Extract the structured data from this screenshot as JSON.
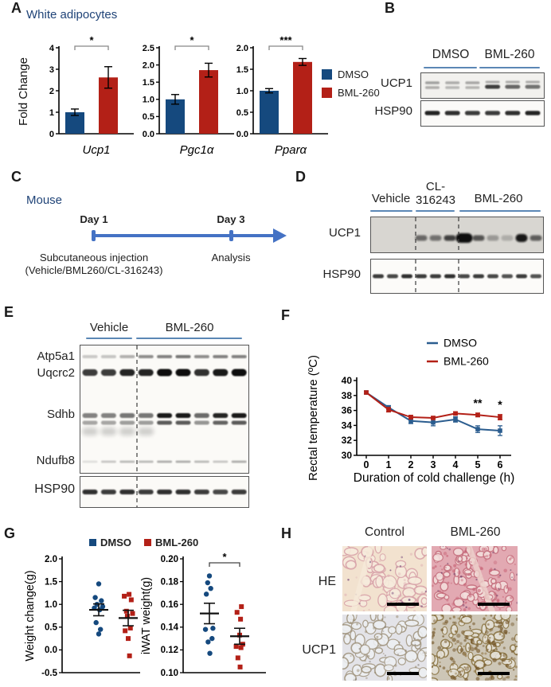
{
  "colors": {
    "dmso_blue": "#15497e",
    "bml_red": "#b32017",
    "heading_blue": "#1f4377",
    "timeline_blue": "#4472c4",
    "underline_blue": "#5b87b5",
    "band_black": "#0f0f0f"
  },
  "panel_a": {
    "label": "A",
    "title": "White adipocytes",
    "legend": [
      {
        "label": "DMSO",
        "color": "#15497e"
      },
      {
        "label": "BML-260",
        "color": "#b32017"
      }
    ]
  },
  "panel_b": {
    "label": "B",
    "groups": [
      "DMSO",
      "BML-260"
    ],
    "rows": [
      "UCP1",
      "HSP90"
    ],
    "ucp1_intensities": [
      0.35,
      0.3,
      0.32,
      0.78,
      0.6,
      0.55
    ],
    "hsp90_intensities": [
      0.9,
      0.85,
      0.8,
      0.8,
      0.85,
      0.9
    ]
  },
  "panel_c": {
    "label": "C",
    "title": "Mouse",
    "events": [
      {
        "day": "Day 1",
        "caption_lines": [
          "Subcutaneous injection",
          "(Vehicle/BML260/CL-316243)"
        ]
      },
      {
        "day": "Day 3",
        "caption_lines": [
          "Analysis"
        ]
      }
    ]
  },
  "panel_d": {
    "label": "D",
    "groups": [
      "Vehicle",
      "CL-316243",
      "BML-260"
    ],
    "group2_lines": [
      "CL-",
      "316243"
    ],
    "rows": [
      "UCP1",
      "HSP90"
    ],
    "ucp1_intensities": [
      0,
      0,
      0,
      0.55,
      0.5,
      0.75,
      1.0,
      0.65,
      0.3,
      0.2,
      0.95,
      0.6
    ],
    "hsp90_intensities": [
      0.8,
      0.75,
      0.85,
      0.8,
      0.8,
      0.85,
      0.75,
      0.8,
      0.75,
      0.7,
      0.8,
      0.7
    ]
  },
  "panel_e": {
    "label": "E",
    "groups": [
      "Vehicle",
      "BML-260"
    ],
    "proteins": [
      "Atp5a1",
      "Uqcrc2",
      "Sdhb",
      "Ndufb8"
    ],
    "loading_control": "HSP90",
    "rows": {
      "atp5a1": [
        0.2,
        0.22,
        0.3,
        0.45,
        0.5,
        0.55,
        0.45,
        0.5,
        0.5
      ],
      "uqcrc2": [
        0.8,
        0.8,
        0.9,
        0.9,
        1.0,
        1.0,
        0.85,
        0.95,
        1.0
      ],
      "sdhb": [
        0.5,
        0.5,
        0.55,
        0.55,
        0.95,
        0.95,
        0.6,
        0.9,
        0.95
      ],
      "ndufb8": [
        0.1,
        0.2,
        0.25,
        0.25,
        0.3,
        0.3,
        0.25,
        0.2,
        0.3
      ],
      "hsp90": [
        0.85,
        0.8,
        0.85,
        0.8,
        0.85,
        0.85,
        0.8,
        0.75,
        0.8
      ]
    }
  },
  "panel_f": {
    "label": "F"
  },
  "panel_g": {
    "label": "G"
  },
  "panel_h": {
    "label": "H",
    "columns": [
      "Control",
      "BML-260"
    ],
    "rows": [
      "HE",
      "UCP1"
    ],
    "histology": {
      "he_control": {
        "bg": "#f2e2cf",
        "cell_fill": "#f7ecdd",
        "cell_stroke": "#d8a3a9",
        "septum": "#f6ead9"
      },
      "he_bml260": {
        "bg": "#e2a9b2",
        "cell_fill": "#f4dfdd",
        "cell_stroke": "#c6717f",
        "septum": "#eed3cd"
      },
      "ucp1_control": {
        "bg": "#e3e3e8",
        "cell_fill": "#eef0f3",
        "cell_stroke": "#a39782"
      },
      "ucp1_bml260": {
        "bg": "#cdc6b6",
        "cell_fill": "#e6e2d8",
        "cell_stroke": "#8a7442"
      }
    }
  },
  "chart_data": [
    {
      "id": "panel_a_ucp1",
      "type": "bar",
      "gene_label": "Ucp1",
      "categories": [
        "DMSO",
        "BML-260"
      ],
      "values": [
        1.0,
        2.62
      ],
      "errors": [
        0.15,
        0.5
      ],
      "ylim": [
        0,
        4
      ],
      "yticks": [
        0,
        1,
        2,
        3,
        4
      ],
      "tick_decimals": 0,
      "significance": "*",
      "ylabel": "Fold Change",
      "colors": [
        "#15497e",
        "#b32017"
      ]
    },
    {
      "id": "panel_a_pgc1a",
      "type": "bar",
      "gene_label": "Pgc1α",
      "categories": [
        "DMSO",
        "BML-260"
      ],
      "values": [
        1.0,
        1.85
      ],
      "errors": [
        0.14,
        0.2
      ],
      "ylim": [
        0,
        2.5
      ],
      "yticks": [
        0,
        0.5,
        1.0,
        1.5,
        2.0,
        2.5
      ],
      "tick_decimals": 1,
      "significance": "*",
      "ylabel": "Fold Change",
      "colors": [
        "#15497e",
        "#b32017"
      ]
    },
    {
      "id": "panel_a_ppara",
      "type": "bar",
      "gene_label": "Pparα",
      "categories": [
        "DMSO",
        "BML-260"
      ],
      "values": [
        1.0,
        1.67
      ],
      "errors": [
        0.05,
        0.08
      ],
      "ylim": [
        0,
        2
      ],
      "yticks": [
        0,
        0.5,
        1.0,
        1.5,
        2.0
      ],
      "tick_decimals": 1,
      "significance": "***",
      "ylabel": "Fold Change",
      "colors": [
        "#15497e",
        "#b32017"
      ]
    },
    {
      "id": "panel_f_cold_challenge",
      "type": "line",
      "x": [
        0,
        1,
        2,
        3,
        4,
        5,
        6
      ],
      "series": [
        {
          "name": "DMSO",
          "color": "#2b5d8f",
          "values": [
            38.4,
            36.4,
            34.6,
            34.4,
            34.8,
            33.5,
            33.3
          ],
          "errors": [
            0.2,
            0.25,
            0.35,
            0.45,
            0.35,
            0.45,
            0.65
          ]
        },
        {
          "name": "BML-260",
          "color": "#b32017",
          "values": [
            38.4,
            36.1,
            35.1,
            35.0,
            35.6,
            35.4,
            35.1
          ],
          "errors": [
            0.2,
            0.3,
            0.25,
            0.2,
            0.2,
            0.25,
            0.35
          ]
        }
      ],
      "ylim": [
        30,
        40
      ],
      "yticks": [
        30,
        32,
        34,
        36,
        38,
        40
      ],
      "tick_decimals": 0,
      "ylabel": "Rectal temperature (ºC)",
      "xlabel": "Duration of cold challenge (h)",
      "legend_position": "top",
      "annotations": [
        {
          "x": 5,
          "text": "**"
        },
        {
          "x": 6,
          "text": "*"
        }
      ]
    },
    {
      "id": "panel_g_weight_change",
      "type": "scatter",
      "ylabel": "Weight change(g)",
      "ylim": [
        -0.5,
        2.0
      ],
      "yticks": [
        -0.5,
        0.0,
        0.5,
        1.0,
        1.5,
        2.0
      ],
      "tick_decimals": 1,
      "significance": "",
      "groups": [
        {
          "name": "DMSO",
          "color": "#15497e",
          "marker": "circle",
          "values": [
            1.45,
            1.15,
            1.08,
            1.0,
            0.95,
            0.92,
            0.88,
            0.6,
            0.45,
            0.35
          ],
          "x_jitter": [
            0,
            -0.4,
            0.3,
            -0.2,
            0.45,
            -0.5,
            0.1,
            -0.3,
            0.2,
            0
          ],
          "mean": 0.88,
          "sem": 0.13
        },
        {
          "name": "BML-260",
          "color": "#b32017",
          "marker": "square",
          "values": [
            1.22,
            1.18,
            1.1,
            0.85,
            0.8,
            0.74,
            0.48,
            0.42,
            0.25,
            -0.13
          ],
          "x_jitter": [
            0.1,
            -0.45,
            0.35,
            -0.2,
            0.5,
            -0.1,
            0.25,
            -0.35,
            0,
            0.15
          ],
          "mean": 0.7,
          "sem": 0.17
        }
      ]
    },
    {
      "id": "panel_g_iwat_weight",
      "type": "scatter",
      "ylabel": "iWAT weight(g)",
      "ylim": [
        0.1,
        0.2
      ],
      "yticks": [
        0.1,
        0.12,
        0.14,
        0.16,
        0.18,
        0.2
      ],
      "tick_decimals": 2,
      "significance": "*",
      "groups": [
        {
          "name": "DMSO",
          "color": "#15497e",
          "marker": "circle",
          "values": [
            0.185,
            0.179,
            0.174,
            0.169,
            0.139,
            0.138,
            0.13,
            0.127,
            0.117
          ],
          "x_jitter": [
            0,
            -0.2,
            0.15,
            -0.35,
            0.4,
            -0.45,
            0.3,
            -0.15,
            0.05
          ],
          "mean": 0.152,
          "sem": 0.009
        },
        {
          "name": "BML-260",
          "color": "#b32017",
          "marker": "square",
          "values": [
            0.158,
            0.153,
            0.147,
            0.133,
            0.125,
            0.123,
            0.122,
            0.113,
            0.105
          ],
          "x_jitter": [
            0.2,
            -0.3,
            0.1,
            0,
            0.35,
            -0.4,
            0.15,
            -0.2,
            0.05
          ],
          "mean": 0.132,
          "sem": 0.007
        }
      ]
    }
  ]
}
